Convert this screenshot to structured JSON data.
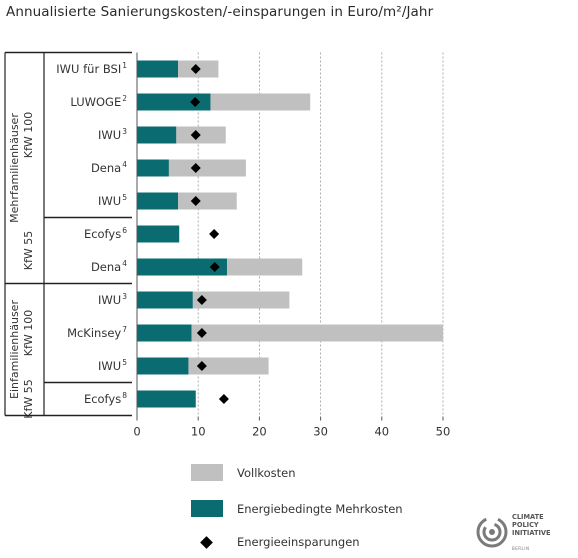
{
  "title": "Annualisierte Sanierungskosten/-einsparungen in Euro/m²/Jahr",
  "chart_data": {
    "type": "bar",
    "orientation": "horizontal",
    "xlim": [
      0,
      50
    ],
    "xticks": [
      "0",
      "10",
      "20",
      "30",
      "40",
      "50"
    ],
    "grid": "vertical dashed",
    "categories": [
      {
        "label": "IWU für BSI",
        "sup": "1"
      },
      {
        "label": "LUWOGE",
        "sup": "2"
      },
      {
        "label": "IWU",
        "sup": "3"
      },
      {
        "label": "Dena",
        "sup": "4"
      },
      {
        "label": "IWU",
        "sup": "5"
      },
      {
        "label": "Ecofys",
        "sup": "6"
      },
      {
        "label": "Dena",
        "sup": "4"
      },
      {
        "label": "IWU",
        "sup": "3"
      },
      {
        "label": "McKinsey",
        "sup": "7"
      },
      {
        "label": "IWU",
        "sup": "5"
      },
      {
        "label": "Ecofys",
        "sup": "8"
      }
    ],
    "series": [
      {
        "name": "Vollkosten",
        "color": "#c0c0c0",
        "values": [
          13.3,
          28.3,
          14.5,
          17.8,
          16.3,
          null,
          27.0,
          24.9,
          50.0,
          21.5,
          null
        ]
      },
      {
        "name": "Energiebedingte Mehrkosten",
        "color": "#0a6b70",
        "values": [
          6.7,
          12.0,
          6.4,
          5.2,
          6.7,
          6.9,
          14.7,
          9.1,
          8.9,
          8.4,
          9.6
        ]
      },
      {
        "name": "Energieeinsparungen",
        "color": "#000000",
        "marker": "diamond",
        "values": [
          9.6,
          9.5,
          9.6,
          9.6,
          9.6,
          12.6,
          12.7,
          10.6,
          10.6,
          10.6,
          14.2
        ]
      }
    ],
    "groups": [
      {
        "outer": "Mehrfamilienhäuser",
        "inner": "KfW 100",
        "rows": [
          0,
          4
        ]
      },
      {
        "outer": "",
        "inner": "KfW 55",
        "rows": [
          5,
          6
        ]
      },
      {
        "outer": "Einfamilienhäuser",
        "inner": "KfW 100",
        "rows": [
          7,
          9
        ]
      },
      {
        "outer": "",
        "inner": "KfW 55",
        "rows": [
          10,
          10
        ]
      }
    ]
  },
  "legend": {
    "items": [
      "Vollkosten",
      "Energiebedingte Mehrkosten",
      "Energieeinsparungen"
    ]
  },
  "logo": {
    "line1": "CLIMATE",
    "line2": "POLICY",
    "line3": "INITIATIVE",
    "line4": "BERLIN"
  }
}
